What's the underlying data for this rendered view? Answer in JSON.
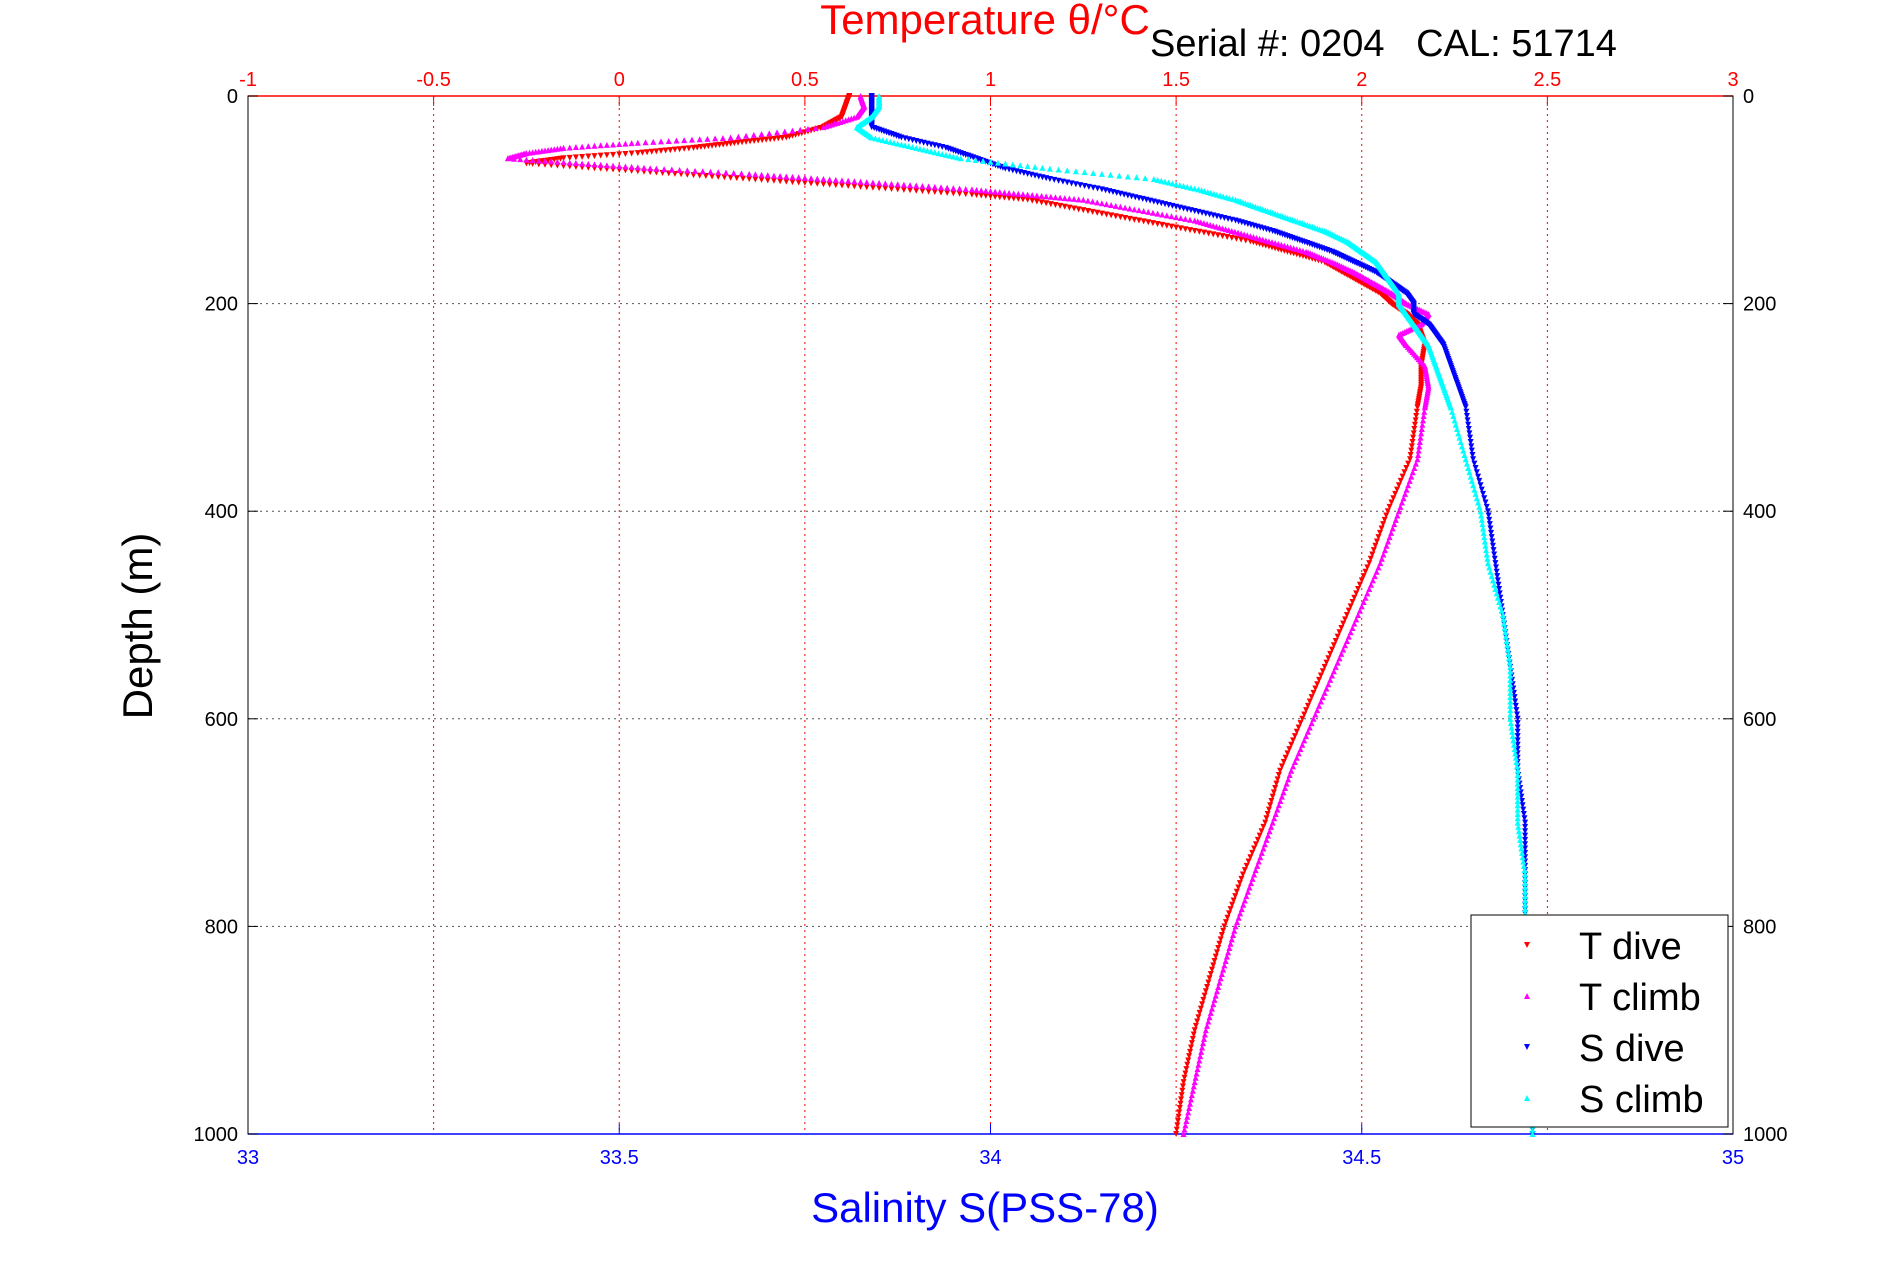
{
  "chart_data": {
    "type": "scatter",
    "title": "Temperature θ/°C",
    "annotation": "Serial #: 0204   CAL: 51714",
    "xlabel": "Salinity S(PSS-78)",
    "ylabel": "Depth (m)",
    "temp_axis": {
      "ticks": [
        -1,
        -0.5,
        0,
        0.5,
        1,
        1.5,
        2,
        2.5,
        3
      ],
      "tick_labels": [
        "-1",
        "-0.5",
        "0",
        "0.5",
        "1",
        "1.5",
        "2",
        "2.5",
        "3"
      ],
      "range": [
        -1,
        3
      ]
    },
    "sal_axis": {
      "ticks": [
        33,
        33.5,
        34,
        34.5,
        35
      ],
      "tick_labels": [
        "33",
        "33.5",
        "34",
        "34.5",
        "35"
      ],
      "range": [
        33,
        35
      ]
    },
    "depth_axis": {
      "ticks": [
        0,
        200,
        400,
        600,
        800,
        1000
      ],
      "tick_labels": [
        "0",
        "200",
        "400",
        "600",
        "800",
        "1000"
      ],
      "range": [
        0,
        1000
      ],
      "reversed": true
    },
    "grid": true,
    "legend_position": "bottom-right",
    "colors": {
      "temp_axis": "#ff0000",
      "sal_axis": "#0000ff",
      "t_dive": "#ff0000",
      "t_climb": "#ff00ff",
      "s_dive": "#0000ff",
      "s_climb": "#00ffff"
    },
    "series": [
      {
        "name": "T dive",
        "axis": "temperature",
        "marker": "down-triangle",
        "depth": [
          0,
          10,
          20,
          30,
          40,
          45,
          50,
          55,
          60,
          65,
          70,
          75,
          80,
          85,
          90,
          95,
          100,
          110,
          120,
          130,
          140,
          150,
          160,
          170,
          180,
          190,
          200,
          210,
          220,
          230,
          240,
          260,
          280,
          300,
          350,
          400,
          450,
          500,
          550,
          600,
          650,
          700,
          750,
          800,
          850,
          900,
          950,
          1000
        ],
        "values": [
          0.62,
          0.61,
          0.6,
          0.55,
          0.45,
          0.32,
          0.2,
          0.05,
          -0.15,
          -0.25,
          -0.05,
          0.15,
          0.35,
          0.55,
          0.75,
          0.95,
          1.1,
          1.25,
          1.4,
          1.55,
          1.7,
          1.8,
          1.9,
          1.95,
          2.0,
          2.05,
          2.08,
          2.12,
          2.15,
          2.16,
          2.17,
          2.16,
          2.16,
          2.15,
          2.13,
          2.07,
          2.02,
          1.96,
          1.9,
          1.84,
          1.78,
          1.74,
          1.68,
          1.63,
          1.59,
          1.55,
          1.52,
          1.5
        ]
      },
      {
        "name": "T climb",
        "axis": "temperature",
        "marker": "up-triangle",
        "depth": [
          0,
          10,
          20,
          30,
          40,
          45,
          50,
          55,
          60,
          65,
          70,
          75,
          80,
          85,
          90,
          95,
          100,
          110,
          120,
          130,
          140,
          150,
          160,
          170,
          180,
          190,
          200,
          210,
          220,
          230,
          240,
          260,
          280,
          300,
          350,
          400,
          450,
          500,
          550,
          600,
          650,
          700,
          750,
          800,
          850,
          900,
          950,
          1000
        ],
        "values": [
          0.65,
          0.66,
          0.64,
          0.55,
          0.3,
          0.05,
          -0.15,
          -0.25,
          -0.3,
          -0.1,
          0.1,
          0.35,
          0.55,
          0.75,
          0.95,
          1.1,
          1.25,
          1.4,
          1.55,
          1.65,
          1.75,
          1.85,
          1.92,
          1.98,
          2.03,
          2.08,
          2.12,
          2.18,
          2.16,
          2.1,
          2.12,
          2.17,
          2.18,
          2.17,
          2.15,
          2.1,
          2.05,
          1.99,
          1.93,
          1.87,
          1.81,
          1.76,
          1.71,
          1.66,
          1.62,
          1.58,
          1.55,
          1.52
        ]
      },
      {
        "name": "S dive",
        "axis": "salinity",
        "marker": "down-triangle",
        "depth": [
          0,
          10,
          20,
          30,
          40,
          50,
          60,
          70,
          80,
          90,
          100,
          110,
          120,
          130,
          140,
          150,
          160,
          170,
          180,
          190,
          200,
          210,
          220,
          230,
          240,
          260,
          280,
          300,
          350,
          400,
          450,
          500,
          550,
          600,
          650,
          700,
          750,
          800,
          850,
          900,
          950,
          1000
        ],
        "values": [
          33.84,
          33.84,
          33.84,
          33.84,
          33.88,
          33.94,
          33.98,
          34.02,
          34.08,
          34.15,
          34.21,
          34.27,
          34.33,
          34.38,
          34.42,
          34.46,
          34.49,
          34.52,
          34.54,
          34.56,
          34.57,
          34.57,
          34.59,
          34.6,
          34.61,
          34.62,
          34.63,
          34.64,
          34.65,
          34.67,
          34.68,
          34.69,
          34.7,
          34.71,
          34.71,
          34.72,
          34.72,
          34.72,
          34.73,
          34.73,
          34.73,
          34.73
        ]
      },
      {
        "name": "S climb",
        "axis": "salinity",
        "marker": "up-triangle",
        "depth": [
          0,
          10,
          20,
          30,
          40,
          50,
          60,
          70,
          80,
          90,
          100,
          110,
          120,
          130,
          140,
          150,
          160,
          170,
          180,
          190,
          200,
          210,
          220,
          230,
          240,
          260,
          280,
          300,
          350,
          400,
          450,
          500,
          550,
          600,
          650,
          700,
          750,
          800,
          850,
          900,
          950,
          1000
        ],
        "values": [
          33.85,
          33.85,
          33.84,
          33.82,
          33.84,
          33.9,
          33.96,
          34.08,
          34.22,
          34.28,
          34.33,
          34.37,
          34.41,
          34.45,
          34.48,
          34.5,
          34.52,
          34.53,
          34.54,
          34.55,
          34.55,
          34.56,
          34.57,
          34.58,
          34.59,
          34.6,
          34.61,
          34.62,
          34.64,
          34.66,
          34.67,
          34.69,
          34.7,
          34.7,
          34.71,
          34.71,
          34.72,
          34.72,
          34.72,
          34.72,
          34.73,
          34.73
        ]
      }
    ]
  }
}
